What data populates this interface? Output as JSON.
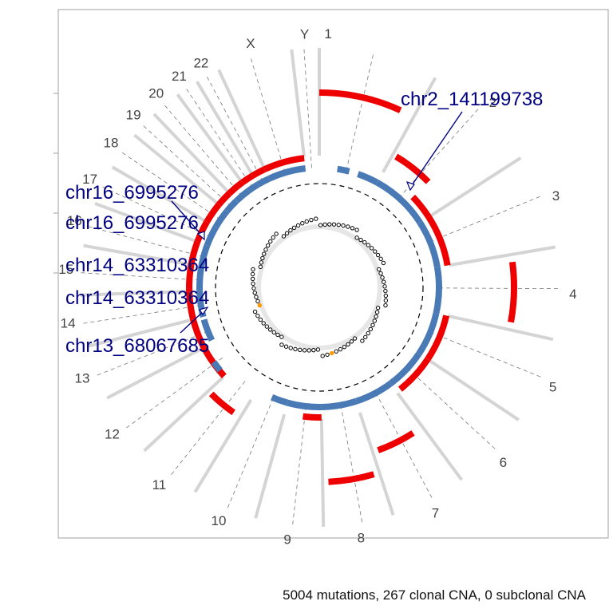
{
  "chart_data": {
    "type": "circos",
    "caption": "5004 mutations, 267 clonal CNA, 0 subclonal CNA",
    "chromosomes": [
      "1",
      "2",
      "3",
      "4",
      "5",
      "6",
      "7",
      "8",
      "9",
      "10",
      "11",
      "12",
      "13",
      "14",
      "15",
      "16",
      "17",
      "18",
      "19",
      "20",
      "21",
      "22",
      "X",
      "Y"
    ],
    "chromosome_lengths_mb": [
      249,
      243,
      198,
      191,
      181,
      171,
      159,
      146,
      141,
      136,
      135,
      133,
      114,
      107,
      102,
      90,
      83,
      80,
      59,
      63,
      48,
      51,
      156,
      57
    ],
    "annotations": [
      {
        "label": "chr2_141199738",
        "chrom": "2",
        "position_mb": 141.2
      },
      {
        "label": "chr16_6995276",
        "chrom": "16",
        "position_mb": 7.0
      },
      {
        "label": "chr16_6995276",
        "chrom": "16",
        "position_mb": 7.0
      },
      {
        "label": "chr14_63310364",
        "chrom": "14",
        "position_mb": 63.3
      },
      {
        "label": "chr14_63310364",
        "chrom": "14",
        "position_mb": 63.3
      },
      {
        "label": "chr13_68067685",
        "chrom": "13",
        "position_mb": 68.1
      }
    ],
    "clonal_cna_tracks": [
      {
        "name": "copy number gain (outer, red)",
        "color": "#ee0000",
        "segments": [
          {
            "chrom": "1",
            "start": 0.0,
            "end": 0.85,
            "level": 4
          },
          {
            "chrom": "2",
            "start": 0.05,
            "end": 0.6,
            "level": 2
          },
          {
            "chrom": "2",
            "start": 0.6,
            "end": 1.0,
            "level": 1
          },
          {
            "chrom": "3",
            "start": 0.0,
            "end": 1.0,
            "level": 1
          },
          {
            "chrom": "4",
            "start": 0.1,
            "end": 0.9,
            "level": 4
          },
          {
            "chrom": "5",
            "start": 0.0,
            "end": 1.0,
            "level": 1
          },
          {
            "chrom": "6",
            "start": 0.0,
            "end": 0.9,
            "level": 1
          },
          {
            "chrom": "7",
            "start": 0.2,
            "end": 0.9,
            "level": 3
          },
          {
            "chrom": "8",
            "start": 0.1,
            "end": 0.9,
            "level": 4
          },
          {
            "chrom": "9",
            "start": 0.0,
            "end": 0.5,
            "level": 1
          },
          {
            "chrom": "11",
            "start": 0.2,
            "end": 0.9,
            "level": 2
          },
          {
            "chrom": "12",
            "start": 0.0,
            "end": 1.0,
            "level": 1
          },
          {
            "chrom": "13",
            "start": 0.0,
            "end": 1.0,
            "level": 1
          },
          {
            "chrom": "14",
            "start": 0.0,
            "end": 1.0,
            "level": 1
          },
          {
            "chrom": "15",
            "start": 0.0,
            "end": 1.0,
            "level": 1
          },
          {
            "chrom": "16",
            "start": 0.0,
            "end": 1.0,
            "level": 1
          },
          {
            "chrom": "17",
            "start": 0.0,
            "end": 1.0,
            "level": 1
          },
          {
            "chrom": "18",
            "start": 0.0,
            "end": 1.0,
            "level": 1
          },
          {
            "chrom": "19",
            "start": 0.0,
            "end": 1.0,
            "level": 1
          },
          {
            "chrom": "20",
            "start": 0.0,
            "end": 1.0,
            "level": 1
          },
          {
            "chrom": "21",
            "start": 0.0,
            "end": 1.0,
            "level": 1
          },
          {
            "chrom": "22",
            "start": 0.0,
            "end": 1.0,
            "level": 1
          },
          {
            "chrom": "X",
            "start": 0.0,
            "end": 1.0,
            "level": 1
          }
        ]
      },
      {
        "name": "minor copy number (inner, blue)",
        "color": "#4a7ab5",
        "segments": [
          {
            "chrom": "1",
            "start": 0.3,
            "end": 0.5,
            "level": 0
          },
          {
            "chrom": "1",
            "start": 0.65,
            "end": 1.0,
            "level": 0
          },
          {
            "chrom": "2",
            "start": 0.0,
            "end": 1.0,
            "level": 0
          },
          {
            "chrom": "3",
            "start": 0.0,
            "end": 1.0,
            "level": 0
          },
          {
            "chrom": "4",
            "start": 0.0,
            "end": 1.0,
            "level": 0
          },
          {
            "chrom": "5",
            "start": 0.0,
            "end": 1.0,
            "level": 0
          },
          {
            "chrom": "6",
            "start": 0.0,
            "end": 1.0,
            "level": 0
          },
          {
            "chrom": "7",
            "start": 0.0,
            "end": 1.0,
            "level": 0
          },
          {
            "chrom": "8",
            "start": 0.0,
            "end": 1.0,
            "level": 0
          },
          {
            "chrom": "9",
            "start": 0.0,
            "end": 1.0,
            "level": 0
          },
          {
            "chrom": "10",
            "start": 0.0,
            "end": 0.5,
            "level": 0
          },
          {
            "chrom": "12",
            "start": 0.2,
            "end": 0.5,
            "level": 1
          },
          {
            "chrom": "13",
            "start": 0.1,
            "end": 0.9,
            "level": 0
          },
          {
            "chrom": "14",
            "start": 0.0,
            "end": 1.0,
            "level": 0
          },
          {
            "chrom": "15",
            "start": 0.0,
            "end": 1.0,
            "level": 0
          },
          {
            "chrom": "16",
            "start": 0.0,
            "end": 1.0,
            "level": 0
          },
          {
            "chrom": "17",
            "start": 0.0,
            "end": 1.0,
            "level": 0
          },
          {
            "chrom": "18",
            "start": 0.0,
            "end": 1.0,
            "level": 0
          },
          {
            "chrom": "19",
            "start": 0.0,
            "end": 1.0,
            "level": 0
          },
          {
            "chrom": "20",
            "start": 0.0,
            "end": 1.0,
            "level": 0
          },
          {
            "chrom": "21",
            "start": 0.0,
            "end": 1.0,
            "level": 0
          },
          {
            "chrom": "22",
            "start": 0.0,
            "end": 1.0,
            "level": 0
          },
          {
            "chrom": "X",
            "start": 0.0,
            "end": 1.0,
            "level": 0
          }
        ]
      }
    ],
    "mutation_points": {
      "count_drawn": 90,
      "color": "#000000",
      "highlight_color": "#ff9900",
      "highlight_chromosomes": [
        "8",
        "13"
      ]
    }
  }
}
